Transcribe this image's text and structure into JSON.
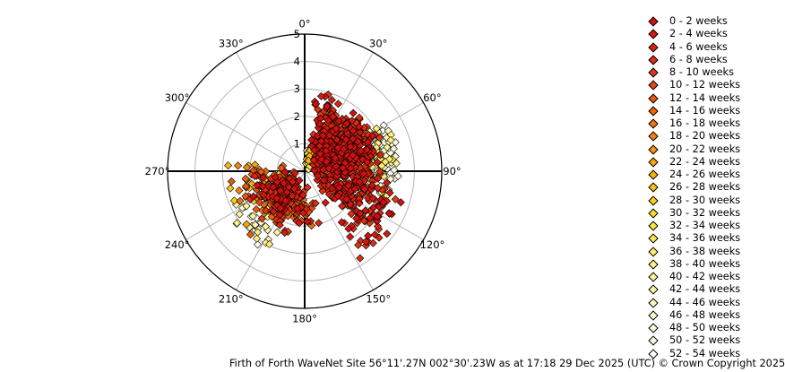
{
  "chart_data": {
    "type": "scatter",
    "subtype": "polar",
    "radial_axis": {
      "min": 0,
      "max": 5,
      "ticks": [
        "1",
        "2",
        "3",
        "4",
        "5"
      ]
    },
    "angular_axis": {
      "direction": "clockwise",
      "zero": "top",
      "ticks": [
        "0°",
        "30°",
        "60°",
        "90°",
        "120°",
        "150°",
        "180°",
        "210°",
        "240°",
        "270°",
        "300°",
        "330°"
      ]
    },
    "grid": true,
    "legend_position": "right",
    "series": [
      {
        "name": "0 - 2 weeks",
        "color": "#d01010"
      },
      {
        "name": "2 - 4 weeks",
        "color": "#d41a10"
      },
      {
        "name": "4 - 6 weeks",
        "color": "#d82510"
      },
      {
        "name": "6 - 8 weeks",
        "color": "#dc3012"
      },
      {
        "name": "8 - 10 weeks",
        "color": "#e03c12"
      },
      {
        "name": "10 - 12 weeks",
        "color": "#e44a10"
      },
      {
        "name": "12 - 14 weeks",
        "color": "#e85810"
      },
      {
        "name": "14 - 16 weeks",
        "color": "#ec6610"
      },
      {
        "name": "16 - 18 weeks",
        "color": "#ef7510"
      },
      {
        "name": "18 - 20 weeks",
        "color": "#f28510"
      },
      {
        "name": "20 - 22 weeks",
        "color": "#f49512"
      },
      {
        "name": "22 - 24 weeks",
        "color": "#f6a612"
      },
      {
        "name": "24 - 26 weeks",
        "color": "#f8b614"
      },
      {
        "name": "26 - 28 weeks",
        "color": "#f9c418"
      },
      {
        "name": "28 - 30 weeks",
        "color": "#fad01c"
      },
      {
        "name": "30 - 32 weeks",
        "color": "#fbda2e"
      },
      {
        "name": "32 - 34 weeks",
        "color": "#fce244"
      },
      {
        "name": "34 - 36 weeks",
        "color": "#fde95a"
      },
      {
        "name": "36 - 38 weeks",
        "color": "#fdee72"
      },
      {
        "name": "38 - 40 weeks",
        "color": "#fef288"
      },
      {
        "name": "40 - 42 weeks",
        "color": "#fef59c"
      },
      {
        "name": "42 - 44 weeks",
        "color": "#fff7b0"
      },
      {
        "name": "44 - 46 weeks",
        "color": "#fff9c2"
      },
      {
        "name": "46 - 48 weeks",
        "color": "#fffbd2"
      },
      {
        "name": "48 - 50 weeks",
        "color": "#fffce0"
      },
      {
        "name": "50 - 52 weeks",
        "color": "#fffdec"
      },
      {
        "name": "52 - 54 weeks",
        "color": "#ffffff"
      }
    ],
    "clusters": [
      {
        "series_range": [
          0,
          4
        ],
        "count": 650,
        "dir_range": [
          5,
          150
        ],
        "r_range": [
          0.3,
          3.1
        ],
        "dir_peak": 45,
        "r_peak": 1.6
      },
      {
        "series_range": [
          0,
          4
        ],
        "count": 60,
        "dir_range": [
          100,
          150
        ],
        "r_range": [
          2.0,
          4.0
        ],
        "dir_peak": 122,
        "r_peak": 3.1
      },
      {
        "series_range": [
          0,
          8
        ],
        "count": 260,
        "dir_range": [
          160,
          275
        ],
        "r_range": [
          0.3,
          2.4
        ],
        "dir_peak": 225,
        "r_peak": 1.2
      },
      {
        "series_range": [
          6,
          14
        ],
        "count": 70,
        "dir_range": [
          210,
          285
        ],
        "r_range": [
          0.3,
          3.3
        ],
        "dir_peak": 250,
        "r_peak": 1.5
      },
      {
        "series_range": [
          12,
          22
        ],
        "count": 60,
        "dir_range": [
          0,
          70
        ],
        "r_range": [
          0.1,
          1.0
        ],
        "dir_peak": 20,
        "r_peak": 0.5
      },
      {
        "series_range": [
          18,
          26
        ],
        "count": 150,
        "dir_range": [
          55,
          115
        ],
        "r_range": [
          1.5,
          3.6
        ],
        "dir_peak": 80,
        "r_peak": 2.8
      },
      {
        "series_range": [
          18,
          26
        ],
        "count": 35,
        "dir_range": [
          200,
          250
        ],
        "r_range": [
          1.5,
          3.5
        ],
        "dir_peak": 225,
        "r_peak": 2.5
      }
    ],
    "footer": "Firth of Forth WaveNet Site 56°11'.27N 002°30'.23W as at 17:18 29 Dec 2025 (UTC) © Crown Copyright 2025"
  }
}
